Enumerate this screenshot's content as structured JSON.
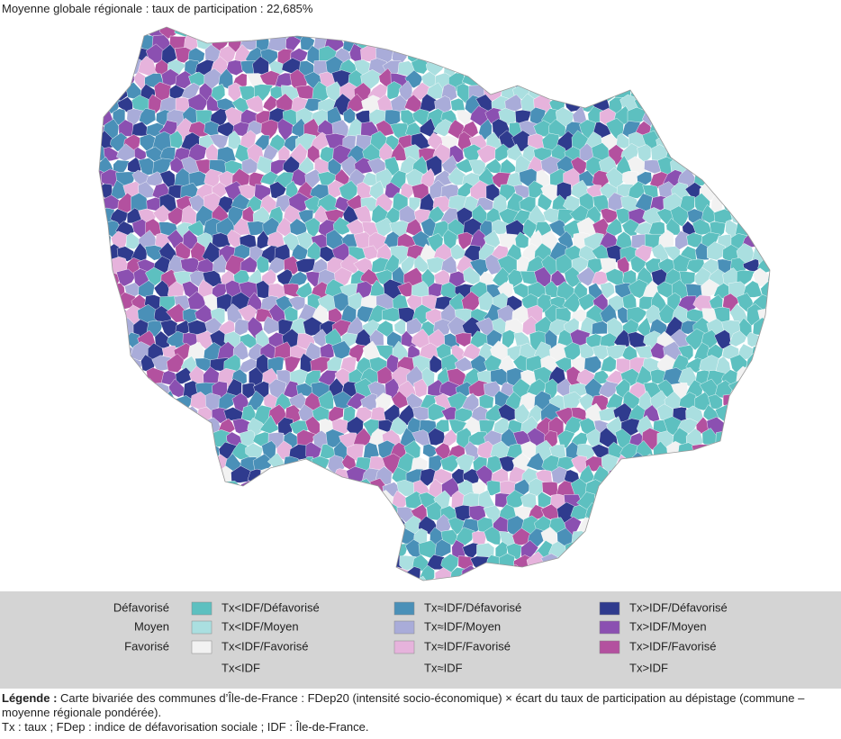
{
  "header": {
    "title": "Moyenne globale régionale : taux de participation : 22,685%"
  },
  "legend": {
    "rows": [
      "Défavorisé",
      "Moyen",
      "Favorisé"
    ],
    "columns": [
      {
        "footer": "Tx<IDF",
        "items": [
          {
            "label": "Tx<IDF/Défavorisé",
            "color": "#5dc0c0"
          },
          {
            "label": "Tx<IDF/Moyen",
            "color": "#aadfe0"
          },
          {
            "label": "Tx<IDF/Favorisé",
            "color": "#f2f2f2"
          }
        ]
      },
      {
        "footer": "Tx≈IDF",
        "items": [
          {
            "label": "Tx≈IDF/Défavorisé",
            "color": "#4a90b8"
          },
          {
            "label": "Tx≈IDF/Moyen",
            "color": "#a9acd9"
          },
          {
            "label": "Tx≈IDF/Favorisé",
            "color": "#e6b3dc"
          }
        ]
      },
      {
        "footer": "Tx>IDF",
        "items": [
          {
            "label": "Tx>IDF/Défavorisé",
            "color": "#2f3b8e"
          },
          {
            "label": "Tx>IDF/Moyen",
            "color": "#8b50b1"
          },
          {
            "label": "Tx>IDF/Favorisé",
            "color": "#b3519f"
          }
        ]
      }
    ]
  },
  "caption": {
    "lead": "Légende :",
    "text": " Carte bivariée des communes d’Île-de-France : FDep20 (intensité socio-économique) × écart du taux de participation au dépistage (commune – moyenne régionale pondérée).",
    "note": "Tx : taux ; FDep : indice de défavorisation sociale ; IDF : Île-de-France."
  }
}
